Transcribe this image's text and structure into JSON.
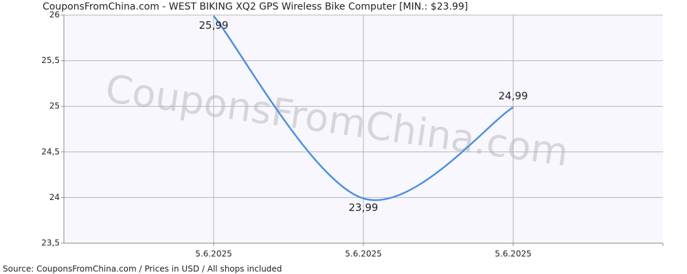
{
  "chart_data": {
    "type": "line",
    "title": "CouponsFromChina.com - WEST BIKING XQ2 GPS Wireless Bike Computer [MIN.: $23.99]",
    "watermark": "CouponsFromChina.com",
    "source": "Source: CouponsFromChina.com / Prices in USD / All shops included",
    "categories": [
      "5.6.2025",
      "5.6.2025",
      "5.6.2025"
    ],
    "values": [
      25.99,
      23.99,
      24.99
    ],
    "value_labels": [
      "25,99",
      "23,99",
      "24,99"
    ],
    "color": "#4a8ee6",
    "ylim": [
      23.5,
      26
    ],
    "yticks": [
      {
        "value": 23.5,
        "label": "23,5"
      },
      24,
      {
        "value": 24.5,
        "label": "24,5"
      },
      25,
      {
        "value": 25.5,
        "label": "25,5"
      },
      26
    ],
    "grid": true
  }
}
